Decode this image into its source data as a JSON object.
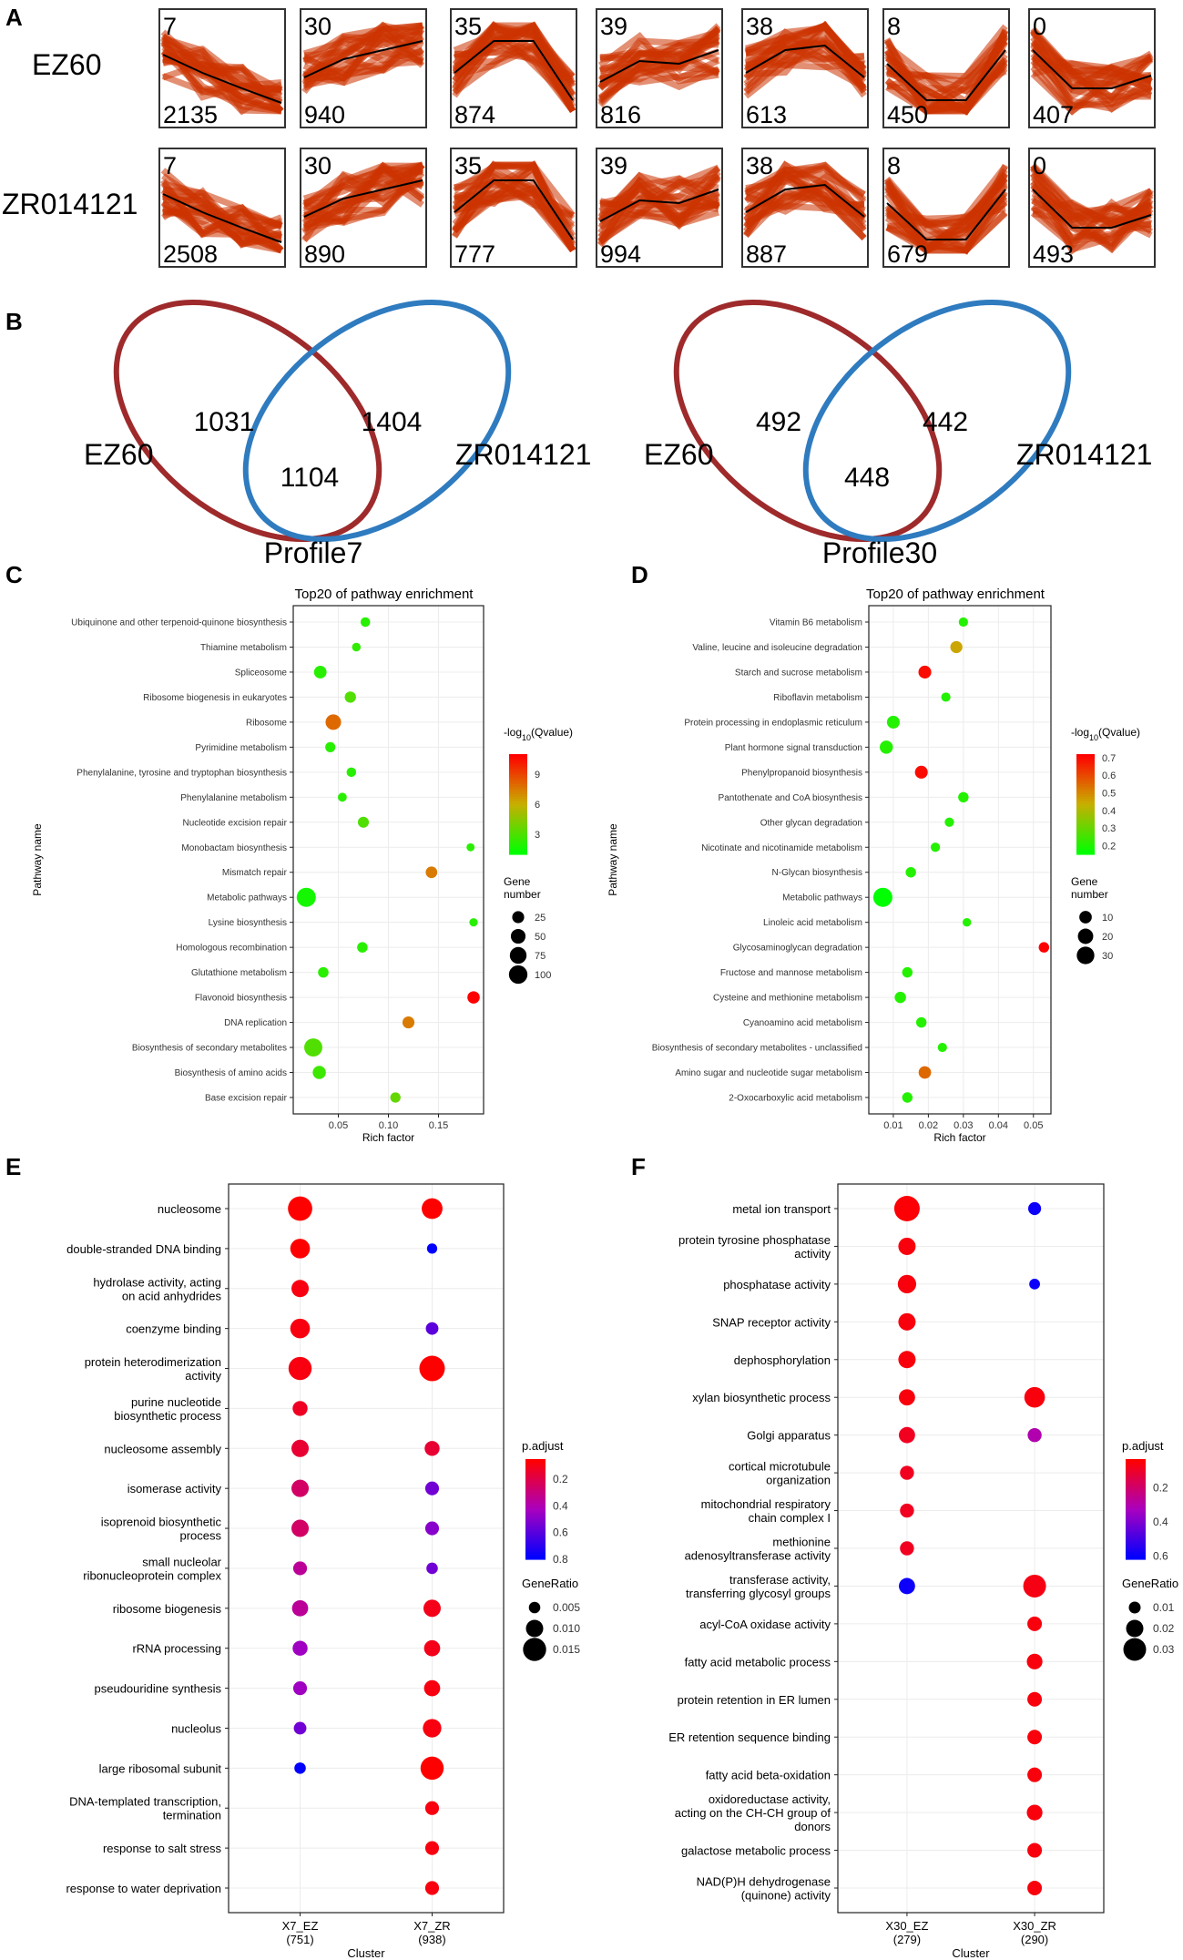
{
  "panel_labels": {
    "A": "A",
    "B": "B",
    "C": "C",
    "D": "D",
    "E": "E",
    "F": "F"
  },
  "colors": {
    "trend": "#cc3300",
    "trend_line": "#000000",
    "ez_ring": "#9e2a2b",
    "zr_ring": "#2f7bbf",
    "grid": "#ececec",
    "panel_border": "#333333"
  },
  "chart_data": [
    {
      "type": "profile-trend-grid",
      "rows": [
        {
          "label": "EZ60",
          "profiles": [
            {
              "id": "7",
              "count": "2135"
            },
            {
              "id": "30",
              "count": "940"
            },
            {
              "id": "35",
              "count": "874"
            },
            {
              "id": "39",
              "count": "816"
            },
            {
              "id": "38",
              "count": "613"
            },
            {
              "id": "8",
              "count": "450"
            },
            {
              "id": "0",
              "count": "407"
            }
          ]
        },
        {
          "label": "ZR014121",
          "profiles": [
            {
              "id": "7",
              "count": "2508"
            },
            {
              "id": "30",
              "count": "890"
            },
            {
              "id": "35",
              "count": "777"
            },
            {
              "id": "39",
              "count": "994"
            },
            {
              "id": "38",
              "count": "887"
            },
            {
              "id": "8",
              "count": "679"
            },
            {
              "id": "0",
              "count": "493"
            }
          ]
        }
      ],
      "profile_shapes": {
        "7": [
          0.35,
          0.55,
          0.72,
          0.88
        ],
        "30": [
          0.6,
          0.4,
          0.3,
          0.2
        ],
        "35": [
          0.55,
          0.2,
          0.2,
          0.85
        ],
        "39": [
          0.65,
          0.42,
          0.45,
          0.3
        ],
        "38": [
          0.55,
          0.3,
          0.25,
          0.6
        ],
        "8": [
          0.45,
          0.85,
          0.85,
          0.3
        ],
        "0": [
          0.3,
          0.72,
          0.72,
          0.58
        ]
      }
    },
    {
      "type": "venn",
      "title": "Profile7",
      "left_label": "EZ60",
      "right_label": "ZR014121",
      "left_only": "1031",
      "overlap": "1104",
      "right_only": "1404"
    },
    {
      "type": "venn",
      "title": "Profile30",
      "left_label": "EZ60",
      "right_label": "ZR014121",
      "left_only": "492",
      "overlap": "448",
      "right_only": "442"
    },
    {
      "type": "scatter",
      "title": "Top20 of pathway enrichment",
      "xlabel": "Rich factor",
      "ylabel": "Pathway name",
      "xlim": [
        0.005,
        0.195
      ],
      "xticks": [
        0.05,
        0.1,
        0.15
      ],
      "xtick_labels": [
        "0.05",
        "0.10",
        "0.15"
      ],
      "color_legend": {
        "title_prefix": "-log",
        "title_sub": "10",
        "title_suffix": "(Qvalue)",
        "ticks": [
          9,
          6,
          3
        ],
        "cmin": 1,
        "cmax": 11
      },
      "size_legend": {
        "title_line1": "Gene",
        "title_line2": "number",
        "values": [
          25,
          50,
          75,
          100
        ],
        "smin": 5,
        "smax": 110
      },
      "points": [
        {
          "name": "Ubiquinone and other terpenoid-quinone biosynthesis",
          "x": 0.077,
          "genes": 10,
          "q": 2.0
        },
        {
          "name": "Thiamine metabolism",
          "x": 0.068,
          "genes": 6,
          "q": 2.2
        },
        {
          "name": "Spliceosome",
          "x": 0.032,
          "genes": 30,
          "q": 2.0
        },
        {
          "name": "Ribosome biogenesis in eukaryotes",
          "x": 0.062,
          "genes": 20,
          "q": 3.0
        },
        {
          "name": "Ribosome",
          "x": 0.045,
          "genes": 60,
          "q": 8.0
        },
        {
          "name": "Pyrimidine metabolism",
          "x": 0.042,
          "genes": 13,
          "q": 2.0
        },
        {
          "name": "Phenylalanine, tyrosine and tryptophan biosynthesis",
          "x": 0.063,
          "genes": 10,
          "q": 2.0
        },
        {
          "name": "Phenylalanine metabolism",
          "x": 0.054,
          "genes": 7,
          "q": 2.0
        },
        {
          "name": "Nucleotide excision repair",
          "x": 0.075,
          "genes": 18,
          "q": 3.0
        },
        {
          "name": "Monobactam biosynthesis",
          "x": 0.182,
          "genes": 4,
          "q": 2.0
        },
        {
          "name": "Mismatch repair",
          "x": 0.143,
          "genes": 22,
          "q": 7.5
        },
        {
          "name": "Metabolic pathways",
          "x": 0.018,
          "genes": 110,
          "q": 1.5
        },
        {
          "name": "Lysine biosynthesis",
          "x": 0.185,
          "genes": 5,
          "q": 2.0
        },
        {
          "name": "Homologous recombination",
          "x": 0.074,
          "genes": 15,
          "q": 2.0
        },
        {
          "name": "Glutathione metabolism",
          "x": 0.035,
          "genes": 15,
          "q": 2.0
        },
        {
          "name": "Flavonoid biosynthesis",
          "x": 0.185,
          "genes": 28,
          "q": 11.0
        },
        {
          "name": "DNA replication",
          "x": 0.12,
          "genes": 25,
          "q": 7.5
        },
        {
          "name": "Biosynthesis of secondary metabolites",
          "x": 0.025,
          "genes": 95,
          "q": 3.0
        },
        {
          "name": "Biosynthesis of amino acids",
          "x": 0.031,
          "genes": 35,
          "q": 2.5
        },
        {
          "name": "Base excision repair",
          "x": 0.107,
          "genes": 14,
          "q": 3.5
        }
      ]
    },
    {
      "type": "scatter",
      "title": "Top20 of pathway enrichment",
      "xlabel": "Rich factor",
      "ylabel": "Pathway name",
      "xlim": [
        0.003,
        0.055
      ],
      "xticks": [
        0.01,
        0.02,
        0.03,
        0.04,
        0.05
      ],
      "xtick_labels": [
        "0.01",
        "0.02",
        "0.03",
        "0.04",
        "0.05"
      ],
      "color_legend": {
        "title_prefix": "-log",
        "title_sub": "10",
        "title_suffix": "(Qvalue)",
        "ticks": [
          0.7,
          0.6,
          0.5,
          0.4,
          0.3,
          0.2
        ],
        "cmin": 0.15,
        "cmax": 0.72
      },
      "size_legend": {
        "title_line1": "Gene",
        "title_line2": "number",
        "values": [
          10,
          20,
          30
        ],
        "smin": 3,
        "smax": 38
      },
      "points": [
        {
          "name": "Vitamin B6 metabolism",
          "x": 0.03,
          "genes": 3,
          "q": 0.2
        },
        {
          "name": "Valine, leucine and isoleucine degradation",
          "x": 0.028,
          "genes": 9,
          "q": 0.45
        },
        {
          "name": "Starch and sucrose metabolism",
          "x": 0.019,
          "genes": 11,
          "q": 0.7
        },
        {
          "name": "Riboflavin metabolism",
          "x": 0.025,
          "genes": 3,
          "q": 0.2
        },
        {
          "name": "Protein processing in endoplasmic reticulum",
          "x": 0.01,
          "genes": 11,
          "q": 0.2
        },
        {
          "name": "Plant hormone signal transduction",
          "x": 0.008,
          "genes": 12,
          "q": 0.2
        },
        {
          "name": "Phenylpropanoid biosynthesis",
          "x": 0.018,
          "genes": 11,
          "q": 0.7
        },
        {
          "name": "Pantothenate and CoA biosynthesis",
          "x": 0.03,
          "genes": 5,
          "q": 0.2
        },
        {
          "name": "Other glycan degradation",
          "x": 0.026,
          "genes": 3,
          "q": 0.2
        },
        {
          "name": "Nicotinate and nicotinamide metabolism",
          "x": 0.022,
          "genes": 3,
          "q": 0.2
        },
        {
          "name": "N-Glycan biosynthesis",
          "x": 0.015,
          "genes": 5,
          "q": 0.2
        },
        {
          "name": "Metabolic pathways",
          "x": 0.007,
          "genes": 38,
          "q": 0.15
        },
        {
          "name": "Linoleic acid metabolism",
          "x": 0.031,
          "genes": 2,
          "q": 0.2
        },
        {
          "name": "Glycosaminoglycan degradation",
          "x": 0.053,
          "genes": 5,
          "q": 0.72
        },
        {
          "name": "Fructose and mannose metabolism",
          "x": 0.014,
          "genes": 5,
          "q": 0.2
        },
        {
          "name": "Cysteine and methionine metabolism",
          "x": 0.012,
          "genes": 7,
          "q": 0.2
        },
        {
          "name": "Cyanoamino acid metabolism",
          "x": 0.018,
          "genes": 5,
          "q": 0.2
        },
        {
          "name": "Biosynthesis of secondary metabolites - unclassified",
          "x": 0.024,
          "genes": 3,
          "q": 0.2
        },
        {
          "name": "Amino sugar and nucleotide sugar metabolism",
          "x": 0.019,
          "genes": 10,
          "q": 0.55
        },
        {
          "name": "2-Oxocarboxylic acid metabolism",
          "x": 0.014,
          "genes": 5,
          "q": 0.2
        }
      ]
    },
    {
      "type": "scatter",
      "subtype": "go-dotplot",
      "xlabel": "Cluster",
      "clusters": [
        {
          "name": "X7_EZ",
          "n": "(751)"
        },
        {
          "name": "X7_ZR",
          "n": "(938)"
        }
      ],
      "color_legend": {
        "title": "p.adjust",
        "ticks": [
          0.2,
          0.4,
          0.6,
          0.8
        ],
        "pmin": 0.05,
        "pmax": 0.8
      },
      "size_legend": {
        "title": "GeneRatio",
        "values": [
          0.005,
          0.01,
          0.015
        ],
        "labels": [
          "0.005",
          "0.010",
          "0.015"
        ],
        "gmin": 0.003,
        "gmax": 0.017
      },
      "terms": [
        {
          "label": [
            "nucleosome"
          ],
          "ez": [
            0.016,
            0.05
          ],
          "zr": [
            0.013,
            0.05
          ]
        },
        {
          "label": [
            "double-stranded DNA binding"
          ],
          "ez": [
            0.012,
            0.05
          ],
          "zr": [
            0.004,
            0.8
          ]
        },
        {
          "label": [
            "hydrolase activity, acting",
            "on acid anhydrides"
          ],
          "ez": [
            0.01,
            0.08
          ],
          "zr": null
        },
        {
          "label": [
            "coenzyme binding"
          ],
          "ez": [
            0.012,
            0.08
          ],
          "zr": [
            0.006,
            0.6
          ]
        },
        {
          "label": [
            "protein heterodimerization",
            "activity"
          ],
          "ez": [
            0.015,
            0.08
          ],
          "zr": [
            0.017,
            0.05
          ]
        },
        {
          "label": [
            "purine nucleotide",
            "biosynthetic process"
          ],
          "ez": [
            0.008,
            0.12
          ],
          "zr": null
        },
        {
          "label": [
            "nucleosome assembly"
          ],
          "ez": [
            0.01,
            0.15
          ],
          "zr": [
            0.008,
            0.15
          ]
        },
        {
          "label": [
            "isomerase activity"
          ],
          "ez": [
            0.01,
            0.25
          ],
          "zr": [
            0.007,
            0.55
          ]
        },
        {
          "label": [
            "isoprenoid biosynthetic",
            "process"
          ],
          "ez": [
            0.01,
            0.25
          ],
          "zr": [
            0.007,
            0.5
          ]
        },
        {
          "label": [
            "small nucleolar",
            "ribonucleoprotein complex"
          ],
          "ez": [
            0.007,
            0.35
          ],
          "zr": [
            0.005,
            0.55
          ]
        },
        {
          "label": [
            "ribosome biogenesis"
          ],
          "ez": [
            0.009,
            0.35
          ],
          "zr": [
            0.01,
            0.1
          ]
        },
        {
          "label": [
            "rRNA processing"
          ],
          "ez": [
            0.008,
            0.45
          ],
          "zr": [
            0.009,
            0.1
          ]
        },
        {
          "label": [
            "pseudouridine synthesis"
          ],
          "ez": [
            0.007,
            0.45
          ],
          "zr": [
            0.009,
            0.08
          ]
        },
        {
          "label": [
            "nucleolus"
          ],
          "ez": [
            0.006,
            0.55
          ],
          "zr": [
            0.011,
            0.08
          ]
        },
        {
          "label": [
            "large ribosomal subunit"
          ],
          "ez": [
            0.005,
            0.8
          ],
          "zr": [
            0.015,
            0.05
          ]
        },
        {
          "label": [
            "DNA-templated transcription,",
            "termination"
          ],
          "ez": null,
          "zr": [
            0.007,
            0.08
          ]
        },
        {
          "label": [
            "response to salt stress"
          ],
          "ez": null,
          "zr": [
            0.007,
            0.08
          ]
        },
        {
          "label": [
            "response to water deprivation"
          ],
          "ez": null,
          "zr": [
            0.007,
            0.08
          ]
        }
      ]
    },
    {
      "type": "scatter",
      "subtype": "go-dotplot",
      "xlabel": "Cluster",
      "clusters": [
        {
          "name": "X30_EZ",
          "n": "(279)"
        },
        {
          "name": "X30_ZR",
          "n": "(290)"
        }
      ],
      "color_legend": {
        "title": "p.adjust",
        "ticks": [
          0.2,
          0.4,
          0.6
        ],
        "pmin": 0.03,
        "pmax": 0.62
      },
      "size_legend": {
        "title": "GeneRatio",
        "values": [
          0.01,
          0.02,
          0.03
        ],
        "labels": [
          "0.01",
          "0.02",
          "0.03"
        ],
        "gmin": 0.005,
        "gmax": 0.035
      },
      "terms": [
        {
          "label": [
            "metal ion transport"
          ],
          "ez": [
            0.035,
            0.04
          ],
          "zr": [
            0.012,
            0.6
          ]
        },
        {
          "label": [
            "protein tyrosine phosphatase",
            "activity"
          ],
          "ez": [
            0.02,
            0.05
          ],
          "zr": null
        },
        {
          "label": [
            "phosphatase activity"
          ],
          "ez": [
            0.022,
            0.05
          ],
          "zr": [
            0.008,
            0.6
          ]
        },
        {
          "label": [
            "SNAP receptor activity"
          ],
          "ez": [
            0.02,
            0.05
          ],
          "zr": null
        },
        {
          "label": [
            "dephosphorylation"
          ],
          "ez": [
            0.02,
            0.05
          ],
          "zr": null
        },
        {
          "label": [
            "xylan biosynthetic process"
          ],
          "ez": [
            0.018,
            0.05
          ],
          "zr": [
            0.026,
            0.05
          ]
        },
        {
          "label": [
            "Golgi apparatus"
          ],
          "ez": [
            0.018,
            0.08
          ],
          "zr": [
            0.014,
            0.3
          ]
        },
        {
          "label": [
            "cortical microtubule",
            "organization"
          ],
          "ez": [
            0.014,
            0.08
          ],
          "zr": null
        },
        {
          "label": [
            "mitochondrial respiratory",
            "chain complex I"
          ],
          "ez": [
            0.014,
            0.08
          ],
          "zr": null
        },
        {
          "label": [
            "methionine",
            "adenosyltransferase activity"
          ],
          "ez": [
            0.014,
            0.08
          ],
          "zr": null
        },
        {
          "label": [
            "transferase activity,",
            "transferring glycosyl groups"
          ],
          "ez": [
            0.018,
            0.6
          ],
          "zr": [
            0.03,
            0.06
          ]
        },
        {
          "label": [
            "acyl-CoA oxidase activity"
          ],
          "ez": null,
          "zr": [
            0.015,
            0.05
          ]
        },
        {
          "label": [
            "fatty acid metabolic process"
          ],
          "ez": null,
          "zr": [
            0.017,
            0.05
          ]
        },
        {
          "label": [
            "protein retention in ER lumen"
          ],
          "ez": null,
          "zr": [
            0.015,
            0.05
          ]
        },
        {
          "label": [
            "ER retention sequence binding"
          ],
          "ez": null,
          "zr": [
            0.015,
            0.05
          ]
        },
        {
          "label": [
            "fatty acid beta-oxidation"
          ],
          "ez": null,
          "zr": [
            0.015,
            0.05
          ]
        },
        {
          "label": [
            "oxidoreductase activity,",
            "acting on the CH-CH group of",
            "donors"
          ],
          "ez": null,
          "zr": [
            0.017,
            0.05
          ]
        },
        {
          "label": [
            "galactose metabolic process"
          ],
          "ez": null,
          "zr": [
            0.015,
            0.05
          ]
        },
        {
          "label": [
            "NAD(P)H dehydrogenase",
            "(quinone) activity"
          ],
          "ez": null,
          "zr": [
            0.015,
            0.05
          ]
        }
      ]
    }
  ]
}
